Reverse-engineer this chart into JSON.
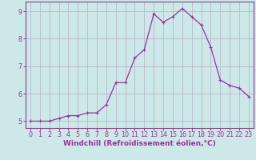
{
  "x": [
    0,
    1,
    2,
    3,
    4,
    5,
    6,
    7,
    8,
    9,
    10,
    11,
    12,
    13,
    14,
    15,
    16,
    17,
    18,
    19,
    20,
    21,
    22,
    23
  ],
  "y": [
    5.0,
    5.0,
    5.0,
    5.1,
    5.2,
    5.2,
    5.3,
    5.3,
    5.6,
    6.4,
    6.4,
    7.3,
    7.6,
    8.9,
    8.6,
    8.8,
    9.1,
    8.8,
    8.5,
    7.7,
    6.5,
    6.3,
    6.2,
    5.9
  ],
  "line_color": "#993399",
  "marker": "+",
  "marker_size": 3,
  "marker_lw": 0.8,
  "line_width": 0.9,
  "bg_color": "#cce8e8",
  "grid_color": "#b8b8cc",
  "axis_color": "#884488",
  "tick_color": "#993399",
  "xlabel": "Windchill (Refroidissement éolien,°C)",
  "xlabel_fontsize": 6.5,
  "tick_fontsize": 5.8,
  "ylim": [
    4.75,
    9.35
  ],
  "xlim": [
    -0.5,
    23.5
  ],
  "yticks": [
    5,
    6,
    7,
    8,
    9
  ],
  "xticks": [
    0,
    1,
    2,
    3,
    4,
    5,
    6,
    7,
    8,
    9,
    10,
    11,
    12,
    13,
    14,
    15,
    16,
    17,
    18,
    19,
    20,
    21,
    22,
    23
  ]
}
